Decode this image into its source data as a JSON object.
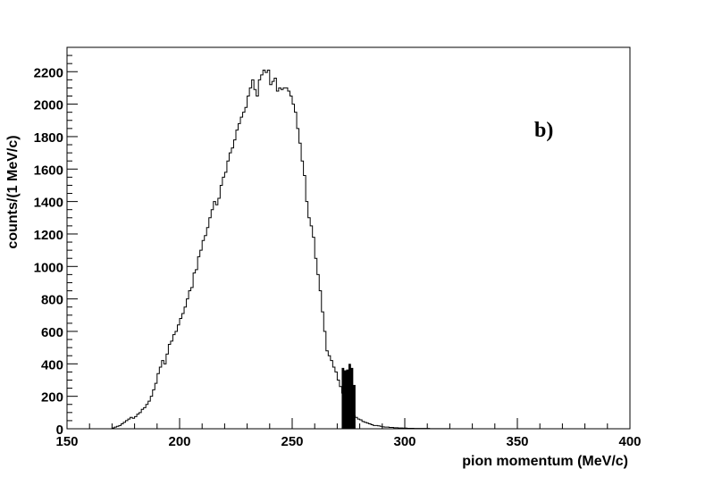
{
  "chart_data": {
    "type": "histogram",
    "xlabel": "pion momentum (MeV/c)",
    "ylabel": "counts/(1 MeV/c)",
    "annotation": "b)",
    "xlim": [
      150,
      400
    ],
    "ylim": [
      0,
      2350
    ],
    "xticks": [
      "150",
      "200",
      "250",
      "300",
      "350",
      "400"
    ],
    "yticks": [
      "0",
      "200",
      "400",
      "600",
      "800",
      "1000",
      "1200",
      "1400",
      "1600",
      "1800",
      "2000",
      "2200"
    ],
    "bin_width": 1,
    "series": [
      {
        "bin_start": 160,
        "counts": [
          0,
          0,
          0,
          0,
          0,
          0,
          0,
          0,
          0,
          0,
          5,
          10,
          15,
          20,
          30,
          40,
          50,
          60,
          70,
          65,
          75,
          90,
          100,
          120,
          130,
          150,
          170,
          200,
          240,
          280,
          340,
          380,
          420,
          400,
          460,
          520,
          540,
          580,
          600,
          640,
          680,
          710,
          750,
          800,
          850,
          870,
          960,
          980,
          1060,
          1100,
          1160,
          1190,
          1240,
          1300,
          1350,
          1400,
          1380,
          1420,
          1500,
          1550,
          1580,
          1650,
          1700,
          1730,
          1780,
          1840,
          1880,
          1920,
          1950,
          1980,
          2050,
          2100,
          2150,
          2090,
          2050,
          2150,
          2180,
          2210,
          2195,
          2210,
          2120,
          2140,
          2160,
          2080,
          2100,
          2090,
          2100,
          2100,
          2080,
          2050,
          2000,
          1950,
          1850,
          1760,
          1650,
          1560,
          1400,
          1300,
          1250,
          1180,
          1050,
          950,
          850,
          720,
          600,
          480,
          450,
          420,
          380,
          350,
          300,
          260,
          220,
          180,
          150,
          120,
          100,
          80,
          70,
          60,
          55,
          45,
          40,
          35,
          30,
          25,
          20,
          20,
          18,
          15,
          12,
          10,
          10,
          8,
          8,
          6,
          6,
          5,
          5,
          4,
          4,
          3,
          3,
          3,
          2,
          2,
          2,
          2,
          2,
          2,
          2,
          1,
          1,
          1,
          1,
          1,
          1,
          1,
          1,
          1
        ]
      },
      {
        "name": "shaded",
        "bin_start": 272,
        "counts": [
          375,
          360,
          365,
          400,
          375,
          270
        ]
      }
    ]
  }
}
